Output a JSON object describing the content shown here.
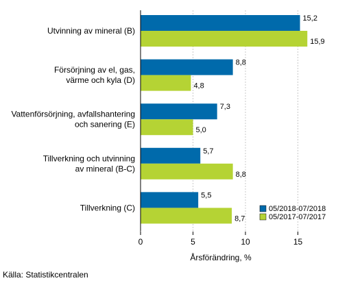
{
  "chart_data": {
    "type": "bar",
    "orientation": "horizontal",
    "categories": [
      [
        "Utvinning av mineral (B)"
      ],
      [
        "Försörjning av el, gas,",
        "värme och kyla (D)"
      ],
      [
        "Vattenförsörjning, avfallshantering",
        "och sanering (E)"
      ],
      [
        "Tillverkning och utvinning",
        "av mineral (B-C)"
      ],
      [
        "Tillverkning (C)"
      ]
    ],
    "series": [
      {
        "name": "05/2018-07/2018",
        "color": "#006AAB",
        "values": [
          15.2,
          8.8,
          7.3,
          5.7,
          5.5
        ],
        "labels": [
          "15,2",
          "8,8",
          "7,3",
          "5,7",
          "5,5"
        ]
      },
      {
        "name": "05/2017-07/2017",
        "color": "#B5D334",
        "values": [
          15.9,
          4.8,
          5.0,
          8.8,
          8.7
        ],
        "labels": [
          "15,9",
          "4,8",
          "5,0",
          "8,8",
          "8,7"
        ]
      }
    ],
    "xlabel": "Årsförändring, %",
    "xlim": [
      0,
      18
    ],
    "xticks": [
      0,
      5,
      10,
      15
    ],
    "xtick_labels": [
      "0",
      "5",
      "10",
      "15"
    ],
    "grid": "vertical",
    "legend_position": "bottom-right",
    "source": "Källa: Statistikcentralen"
  }
}
